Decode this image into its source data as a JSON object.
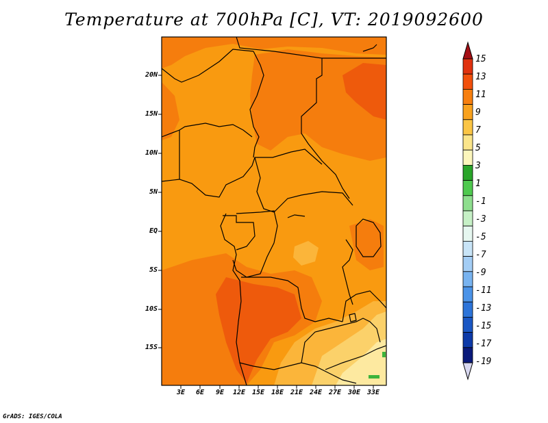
{
  "title": "Temperature at 700hPa [C], VT: 2019092600",
  "credit": "GrADS: IGES/COLA",
  "map": {
    "lat_labels": [
      "20N",
      "15N",
      "10N",
      "5N",
      "EQ",
      "5S",
      "10S",
      "15S"
    ],
    "lon_labels": [
      "3E",
      "6E",
      "9E",
      "12E",
      "15E",
      "18E",
      "21E",
      "24E",
      "27E",
      "30E",
      "33E"
    ]
  },
  "colorbar": {
    "levels": [
      "15",
      "13",
      "11",
      "9",
      "7",
      "5",
      "3",
      "1",
      "-1",
      "-3",
      "-5",
      "-7",
      "-9",
      "-11",
      "-13",
      "-15",
      "-17",
      "-19"
    ],
    "colors": [
      "#a50f15",
      "#e0320f",
      "#f2500c",
      "#f77f0f",
      "#f9a21e",
      "#fbc545",
      "#fbe58a",
      "#fcf6bc",
      "#2aa52a",
      "#4fc94f",
      "#8ede8e",
      "#c6f0c6",
      "#e6f7f0",
      "#c8e4f7",
      "#a3cdf5",
      "#78b3f0",
      "#4b93e8",
      "#2d74d9",
      "#1a57c4",
      "#0d3aa8",
      "#0a1a7a",
      "#d8d8f0"
    ]
  }
}
